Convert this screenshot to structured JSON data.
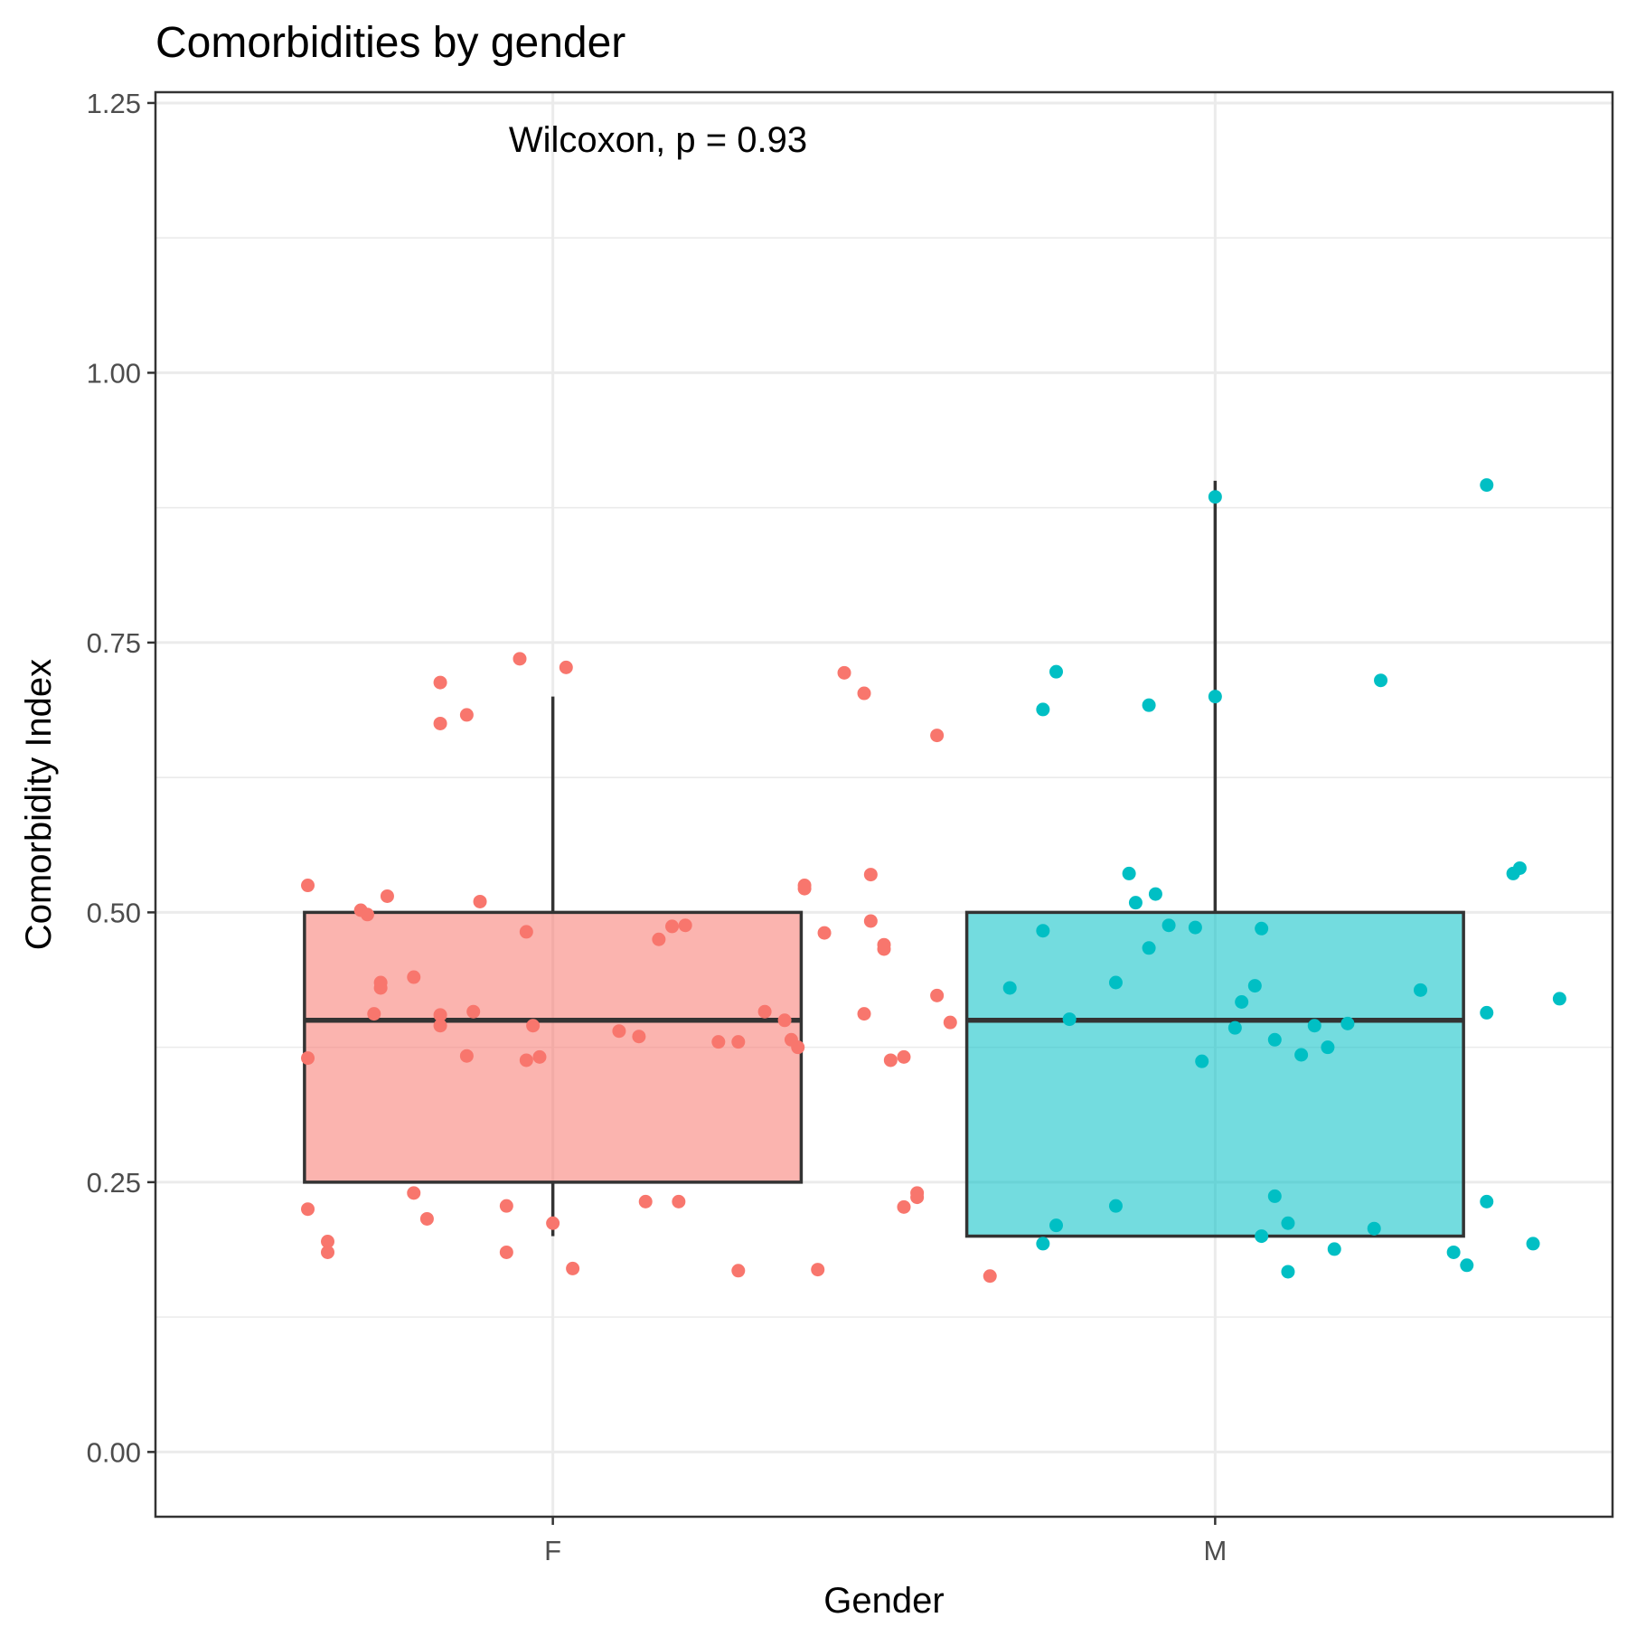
{
  "chart_data": {
    "type": "box",
    "title": "Comorbidities by gender",
    "xlabel": "Gender",
    "ylabel": "Comorbidity Index",
    "annotation": "Wilcoxon, p = 0.93",
    "ylim": [
      -0.06,
      1.26
    ],
    "yticks": [
      0.0,
      0.25,
      0.5,
      0.75,
      1.0,
      1.25
    ],
    "ytick_labels": [
      "0.00",
      "0.25",
      "0.50",
      "0.75",
      "1.00",
      "1.25"
    ],
    "grid": true,
    "categories": [
      "F",
      "M"
    ],
    "colors": {
      "F": "#F8766D",
      "M": "#00BFC4"
    },
    "boxes": [
      {
        "category": "F",
        "lower_whisker": 0.2,
        "q1": 0.25,
        "median": 0.4,
        "q3": 0.5,
        "upper_whisker": 0.7
      },
      {
        "category": "M",
        "lower_whisker": 0.2,
        "q1": 0.2,
        "median": 0.4,
        "q3": 0.5,
        "upper_whisker": 0.9
      }
    ],
    "points": {
      "F": [
        [
          0.63,
          0.525
        ],
        [
          0.63,
          0.365
        ],
        [
          0.63,
          0.225
        ],
        [
          0.66,
          0.195
        ],
        [
          0.66,
          0.185
        ],
        [
          0.71,
          0.502
        ],
        [
          0.72,
          0.498
        ],
        [
          0.75,
          0.515
        ],
        [
          0.73,
          0.406
        ],
        [
          0.74,
          0.43
        ],
        [
          0.74,
          0.435
        ],
        [
          0.79,
          0.44
        ],
        [
          0.79,
          0.24
        ],
        [
          0.81,
          0.216
        ],
        [
          0.83,
          0.713
        ],
        [
          0.83,
          0.675
        ],
        [
          0.83,
          0.405
        ],
        [
          0.83,
          0.395
        ],
        [
          0.87,
          0.683
        ],
        [
          0.87,
          0.367
        ],
        [
          0.88,
          0.408
        ],
        [
          0.89,
          0.51
        ],
        [
          0.93,
          0.228
        ],
        [
          0.93,
          0.185
        ],
        [
          0.95,
          0.735
        ],
        [
          0.96,
          0.482
        ],
        [
          0.96,
          0.363
        ],
        [
          0.97,
          0.395
        ],
        [
          0.98,
          0.366
        ],
        [
          1.0,
          0.212
        ],
        [
          1.02,
          0.727
        ],
        [
          1.03,
          0.17
        ],
        [
          1.1,
          0.39
        ],
        [
          1.13,
          0.385
        ],
        [
          1.14,
          0.232
        ],
        [
          1.16,
          0.475
        ],
        [
          1.18,
          0.487
        ],
        [
          1.19,
          0.232
        ],
        [
          1.2,
          0.488
        ],
        [
          1.25,
          0.38
        ],
        [
          1.28,
          0.168
        ],
        [
          1.28,
          0.38
        ],
        [
          1.32,
          0.408
        ],
        [
          1.35,
          0.4
        ],
        [
          1.36,
          0.382
        ],
        [
          1.37,
          0.375
        ],
        [
          1.38,
          0.522
        ],
        [
          1.38,
          0.525
        ],
        [
          1.4,
          0.169
        ],
        [
          1.41,
          0.481
        ],
        [
          1.44,
          0.722
        ],
        [
          1.47,
          0.406
        ],
        [
          1.47,
          0.703
        ],
        [
          1.48,
          0.535
        ],
        [
          1.48,
          0.492
        ],
        [
          1.5,
          0.47
        ],
        [
          1.5,
          0.466
        ],
        [
          1.51,
          0.363
        ],
        [
          1.53,
          0.366
        ],
        [
          1.53,
          0.227
        ],
        [
          1.55,
          0.236
        ],
        [
          1.55,
          0.24
        ],
        [
          1.58,
          0.664
        ],
        [
          1.58,
          0.423
        ],
        [
          1.6,
          0.398
        ],
        [
          1.66,
          0.163
        ]
      ],
      "M": [
        [
          1.69,
          0.43
        ],
        [
          1.74,
          0.483
        ],
        [
          1.74,
          0.688
        ],
        [
          1.74,
          0.193
        ],
        [
          1.76,
          0.723
        ],
        [
          1.76,
          0.21
        ],
        [
          1.78,
          0.401
        ],
        [
          1.85,
          0.435
        ],
        [
          1.85,
          0.228
        ],
        [
          1.87,
          0.536
        ],
        [
          1.88,
          0.509
        ],
        [
          1.9,
          0.467
        ],
        [
          1.9,
          0.692
        ],
        [
          1.91,
          0.517
        ],
        [
          1.93,
          0.488
        ],
        [
          1.97,
          0.486
        ],
        [
          1.98,
          0.362
        ],
        [
          2.0,
          0.7
        ],
        [
          2.0,
          0.885
        ],
        [
          2.03,
          0.393
        ],
        [
          2.04,
          0.417
        ],
        [
          2.06,
          0.432
        ],
        [
          2.07,
          0.485
        ],
        [
          2.07,
          0.2
        ],
        [
          2.09,
          0.382
        ],
        [
          2.09,
          0.237
        ],
        [
          2.11,
          0.167
        ],
        [
          2.11,
          0.212
        ],
        [
          2.13,
          0.368
        ],
        [
          2.15,
          0.395
        ],
        [
          2.17,
          0.375
        ],
        [
          2.18,
          0.188
        ],
        [
          2.2,
          0.397
        ],
        [
          2.24,
          0.207
        ],
        [
          2.25,
          0.715
        ],
        [
          2.31,
          0.428
        ],
        [
          2.36,
          0.185
        ],
        [
          2.38,
          0.173
        ],
        [
          2.41,
          0.896
        ],
        [
          2.41,
          0.407
        ],
        [
          2.41,
          0.232
        ],
        [
          2.45,
          0.536
        ],
        [
          2.46,
          0.541
        ],
        [
          2.48,
          0.193
        ],
        [
          2.52,
          0.42
        ]
      ]
    }
  }
}
